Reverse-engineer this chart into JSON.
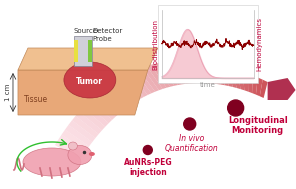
{
  "bg_color": "#ffffff",
  "arrow_color": "#c0405a",
  "arrow_light": "#f0b8c8",
  "tissue_color": "#e8a878",
  "tumor_color": "#c84040",
  "text_color": "#c0003a",
  "label_aunrs": "AuNRs-PEG\ninjection",
  "label_invivo": "In vivo\nQuantification",
  "label_longit": "Longitudinal\nMonitoring",
  "label_hemodynamics": "Hemodynamics",
  "label_biodistrib": "Biodistribution",
  "label_time": "time",
  "label_1cm": "1 cm",
  "label_tissue": "Tissue",
  "label_tumor": "Tumor",
  "label_source": "Source",
  "label_detector": "Detector",
  "label_probe": "Probe",
  "mouse_color": "#f0a0b0",
  "mouse_nose_color": "#e06070"
}
